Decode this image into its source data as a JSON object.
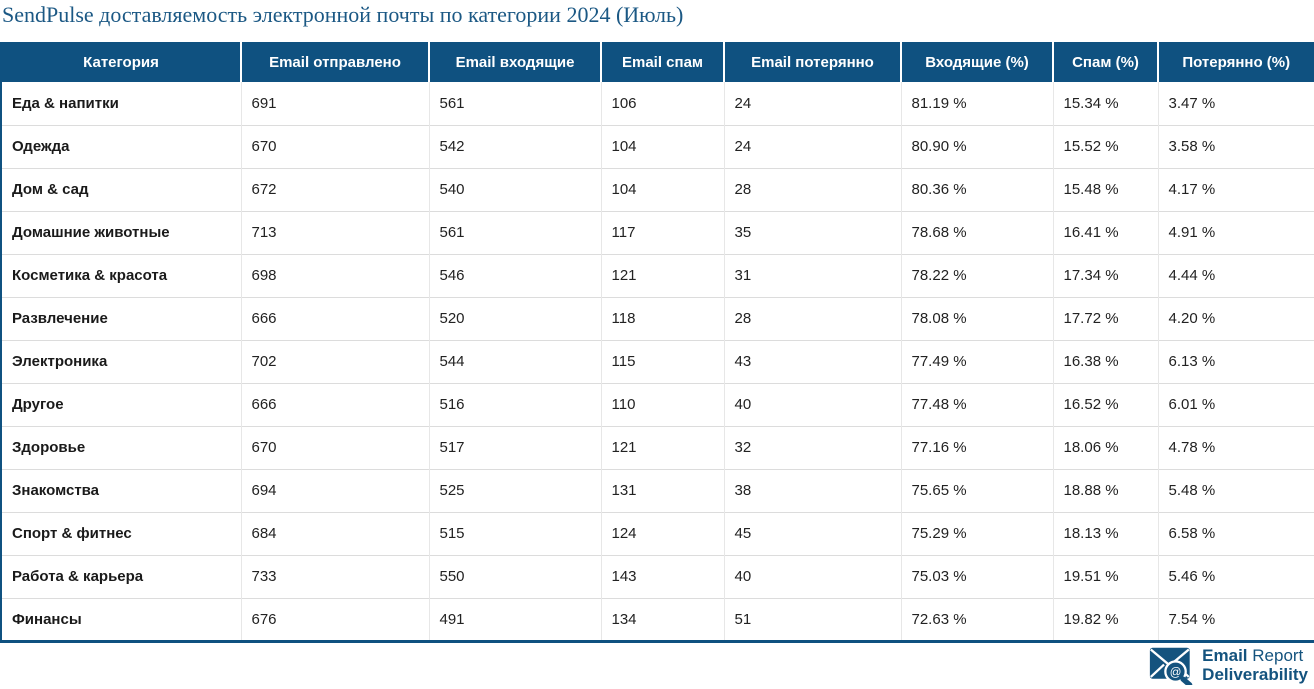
{
  "title": "SendPulse доставляемость электронной почты по категории 2024 (Июль)",
  "colors": {
    "header_bg": "#0f5180",
    "table_border": "#0f5180",
    "title_text": "#1b5884",
    "logo_blue": "#14537e",
    "row_divider": "#dcdcdc"
  },
  "chart_data": {
    "type": "table",
    "title": "SendPulse доставляемость электронной почты по категории 2024 (Июль)",
    "columns": [
      "Категория",
      "Email отправлено",
      "Email входящие",
      "Email спам",
      "Email потерянно",
      "Входящие (%)",
      "Спам (%)",
      "Потерянно (%)"
    ],
    "rows": [
      [
        "Еда & напитки",
        "691",
        "561",
        "106",
        "24",
        "81.19 %",
        "15.34 %",
        "3.47 %"
      ],
      [
        "Одежда",
        "670",
        "542",
        "104",
        "24",
        "80.90 %",
        "15.52 %",
        "3.58 %"
      ],
      [
        "Дом & сад",
        "672",
        "540",
        "104",
        "28",
        "80.36 %",
        "15.48 %",
        "4.17 %"
      ],
      [
        "Домашние животные",
        "713",
        "561",
        "117",
        "35",
        "78.68 %",
        "16.41 %",
        "4.91 %"
      ],
      [
        "Косметика & красота",
        "698",
        "546",
        "121",
        "31",
        "78.22 %",
        "17.34 %",
        "4.44 %"
      ],
      [
        "Развлечение",
        "666",
        "520",
        "118",
        "28",
        "78.08 %",
        "17.72 %",
        "4.20 %"
      ],
      [
        "Электроника",
        "702",
        "544",
        "115",
        "43",
        "77.49 %",
        "16.38 %",
        "6.13 %"
      ],
      [
        "Другое",
        "666",
        "516",
        "110",
        "40",
        "77.48 %",
        "16.52 %",
        "6.01 %"
      ],
      [
        "Здоровье",
        "670",
        "517",
        "121",
        "32",
        "77.16 %",
        "18.06 %",
        "4.78 %"
      ],
      [
        "Знакомства",
        "694",
        "525",
        "131",
        "38",
        "75.65 %",
        "18.88 %",
        "5.48 %"
      ],
      [
        "Спорт & фитнес",
        "684",
        "515",
        "124",
        "45",
        "75.29 %",
        "18.13 %",
        "6.58 %"
      ],
      [
        "Работа & карьера",
        "733",
        "550",
        "143",
        "40",
        "75.03 %",
        "19.51 %",
        "5.46 %"
      ],
      [
        "Финансы",
        "676",
        "491",
        "134",
        "51",
        "72.63 %",
        "19.82 %",
        "7.54 %"
      ]
    ]
  },
  "logo": {
    "brand_bold": "Email",
    "brand_regular": " Report",
    "line2": "Deliverability",
    "at_symbol": "@"
  }
}
